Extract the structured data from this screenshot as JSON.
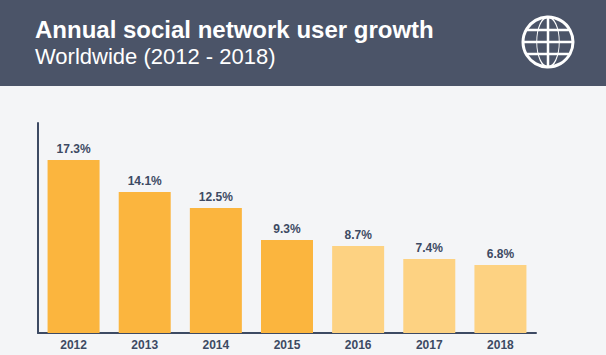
{
  "chart_data": {
    "type": "bar",
    "title": "Annual social network user growth",
    "subtitle": "Worldwide (2012 - 2018)",
    "categories": [
      "2012",
      "2013",
      "2014",
      "2015",
      "2016",
      "2017",
      "2018"
    ],
    "values": [
      17.3,
      14.1,
      12.5,
      9.3,
      8.7,
      7.4,
      6.8
    ],
    "value_labels": [
      "17.3%",
      "14.1%",
      "12.5%",
      "9.3%",
      "8.7%",
      "7.4%",
      "6.8%"
    ],
    "colors": [
      "#fbb53e",
      "#fbb53e",
      "#fbb53e",
      "#fbb53e",
      "#fdd282",
      "#fdd282",
      "#fdd282"
    ],
    "ylim": [
      0,
      21
    ],
    "grid": false,
    "data_labels": true,
    "tick_labels": "x"
  }
}
